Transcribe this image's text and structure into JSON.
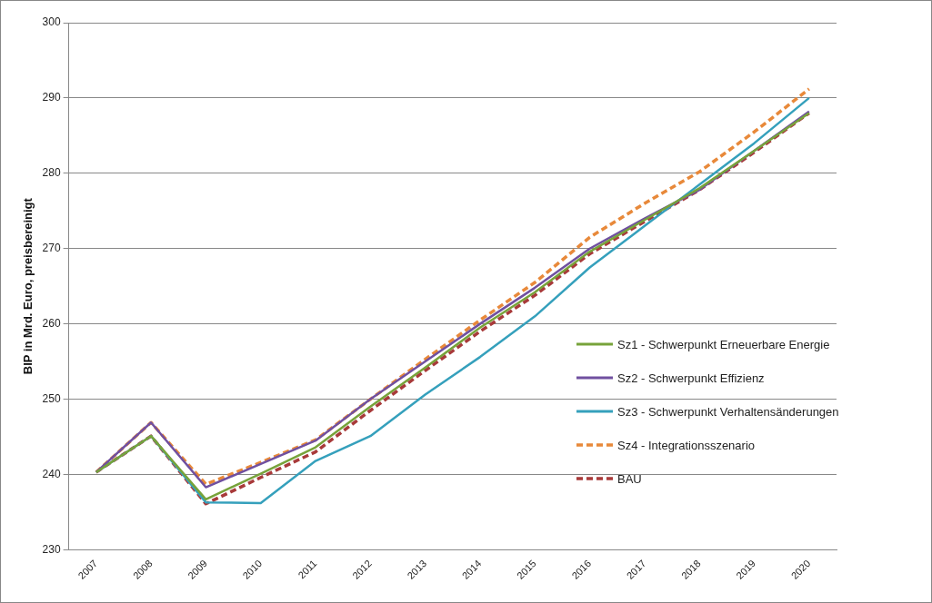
{
  "chart_data": {
    "type": "line",
    "ylabel": "BIP in Mrd. Euro, preisbereinigt",
    "categories": [
      "2007",
      "2008",
      "2009",
      "2010",
      "2011",
      "2012",
      "2013",
      "2014",
      "2015",
      "2016",
      "2017",
      "2018",
      "2019",
      "2020"
    ],
    "ylim": [
      230,
      300
    ],
    "yticks": [
      230,
      240,
      250,
      260,
      270,
      280,
      290,
      300
    ],
    "grid": "y",
    "legend": "right",
    "marker": "none",
    "series": [
      {
        "name": "Sz1 - Schwerpunkt Erneuerbare Energie",
        "color": "#77a33a",
        "line_style": "solid",
        "values": [
          240.3,
          245.1,
          236.7,
          240.1,
          243.6,
          249.0,
          254.2,
          259.5,
          264.2,
          269.6,
          273.8,
          278.0,
          283.0,
          288.0
        ]
      },
      {
        "name": "Sz2 - Schwerpunkt Effizienz",
        "color": "#7050a0",
        "line_style": "solid",
        "values": [
          240.3,
          246.9,
          238.3,
          241.4,
          244.5,
          250.0,
          255.0,
          260.0,
          264.8,
          270.0,
          274.0,
          277.8,
          283.0,
          288.2
        ]
      },
      {
        "name": "Sz3 - Schwerpunkt Verhaltensänderungen",
        "color": "#35a0bc",
        "line_style": "solid",
        "values": [
          240.3,
          245.1,
          236.3,
          236.2,
          241.8,
          245.1,
          250.6,
          255.6,
          261.0,
          267.5,
          273.0,
          278.5,
          284.0,
          290.0
        ]
      },
      {
        "name": "Sz4 - Integrationsszenario",
        "color": "#e8893a",
        "line_style": "dashed",
        "values": [
          240.3,
          246.9,
          238.7,
          241.6,
          244.6,
          250.0,
          255.3,
          260.5,
          265.5,
          271.5,
          276.0,
          280.2,
          285.5,
          291.2
        ]
      },
      {
        "name": "BAU",
        "color": "#a83a3a",
        "line_style": "dashed",
        "values": [
          240.3,
          245.1,
          236.1,
          239.6,
          243.0,
          248.5,
          253.8,
          259.0,
          263.8,
          269.3,
          273.6,
          277.8,
          282.8,
          288.0
        ]
      }
    ]
  }
}
